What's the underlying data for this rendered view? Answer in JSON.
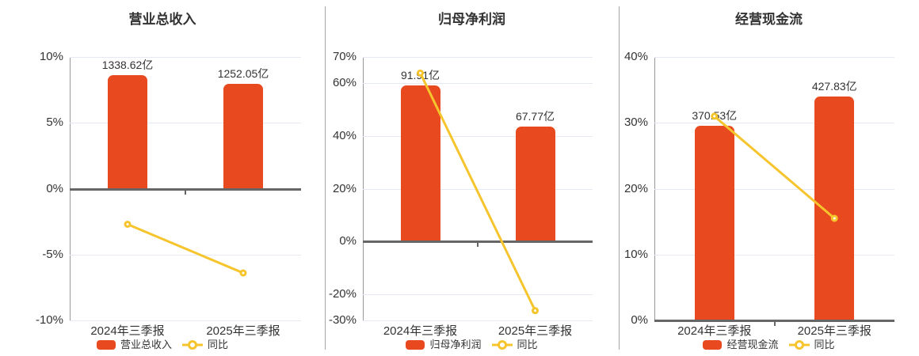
{
  "colors": {
    "bar": "#e8491f",
    "line": "#f6c42d",
    "grid": "#e4e9f3",
    "axis": "#999999",
    "zero_line": "#666666",
    "divider": "#a6a6a6",
    "text": "#333333",
    "marker_fill": "#ffffff"
  },
  "chart_data": [
    {
      "type": "bar+line",
      "title": "营业总收入",
      "categories": [
        "2024年三季报",
        "2025年三季报"
      ],
      "y_axis": {
        "unit": "%",
        "min": -10,
        "max": 10,
        "tick_values": [
          10,
          5,
          0,
          -5,
          -10
        ],
        "tick_labels": [
          "10%",
          "5%",
          "0%",
          "-5%",
          "-10%"
        ],
        "grid": true
      },
      "series": [
        {
          "name": "营业总收入",
          "type": "bar",
          "unit": "亿",
          "values": [
            1338.62,
            1252.05
          ],
          "data_labels": [
            "1338.62亿",
            "1252.05亿"
          ],
          "plotted_tops_axis_units": [
            8.6,
            7.95
          ]
        },
        {
          "name": "同比",
          "type": "line",
          "unit": "%",
          "values": [
            -2.7,
            -6.4
          ]
        }
      ],
      "legend_position": "bottom"
    },
    {
      "type": "bar+line",
      "title": "归母净利润",
      "categories": [
        "2024年三季报",
        "2025年三季报"
      ],
      "y_axis": {
        "unit": "%",
        "min": -30,
        "max": 70,
        "tick_values": [
          70,
          60,
          40,
          20,
          0,
          -20,
          -30
        ],
        "tick_labels": [
          "70%",
          "60%",
          "40%",
          "20%",
          "0%",
          "-20%",
          "-30%"
        ],
        "grid": true
      },
      "series": [
        {
          "name": "归母净利润",
          "type": "bar",
          "unit": "亿",
          "values": [
            91.91,
            67.77
          ],
          "data_labels": [
            "91.91亿",
            "67.77亿"
          ],
          "plotted_tops_axis_units": [
            59.3,
            43.6
          ]
        },
        {
          "name": "同比",
          "type": "line",
          "unit": "%",
          "values": [
            63.9,
            -26.3
          ]
        }
      ],
      "legend_position": "bottom"
    },
    {
      "type": "bar+line",
      "title": "经营现金流",
      "categories": [
        "2024年三季报",
        "2025年三季报"
      ],
      "y_axis": {
        "unit": "%",
        "min": 0,
        "max": 40,
        "tick_values": [
          40,
          30,
          20,
          10,
          0
        ],
        "tick_labels": [
          "40%",
          "30%",
          "20%",
          "10%",
          "0%"
        ],
        "grid": true
      },
      "series": [
        {
          "name": "经营现金流",
          "type": "bar",
          "unit": "亿",
          "values": [
            370.53,
            427.83
          ],
          "data_labels": [
            "370.53亿",
            "427.83亿"
          ],
          "plotted_tops_axis_units": [
            29.55,
            34.0
          ]
        },
        {
          "name": "同比",
          "type": "line",
          "unit": "%",
          "values": [
            31.0,
            15.5
          ]
        }
      ],
      "legend_position": "bottom"
    }
  ]
}
